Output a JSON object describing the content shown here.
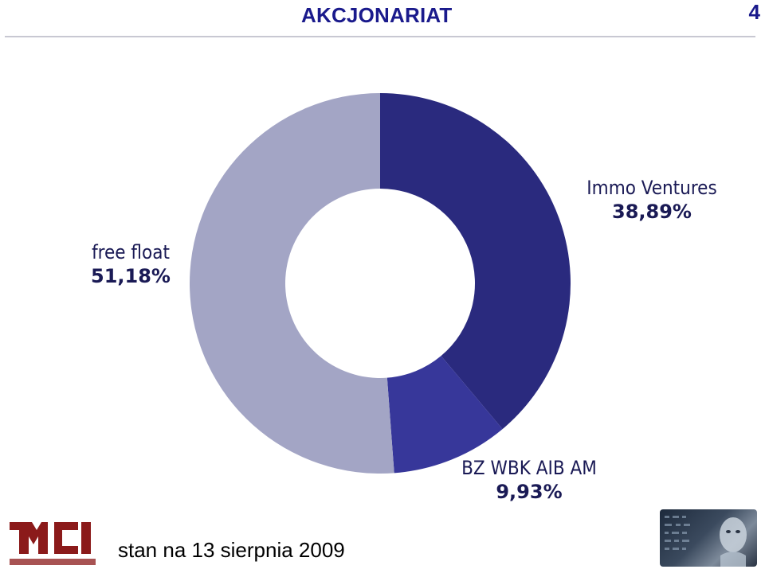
{
  "header": {
    "title": "AKCJONARIAT",
    "page_number": "4"
  },
  "footer": {
    "date_note": "stan na 13 sierpnia 2009"
  },
  "logo": {
    "icon": "mci-management-logo"
  },
  "corner_image": {
    "icon": "robot-face-image"
  },
  "colors": {
    "title": "#1a1a8c",
    "immo": "#2a2a7e",
    "bz": "#37379a",
    "free": "#a3a5c5"
  },
  "chart_data": {
    "type": "pie",
    "donut": true,
    "start_angle_deg": 0,
    "direction": "clockwise",
    "slices": [
      {
        "name": "Immo Ventures",
        "value": 38.89,
        "label_value": "38,89%",
        "color": "#2a2a7e"
      },
      {
        "name": "BZ WBK AIB AM",
        "value": 9.93,
        "label_value": "9,93%",
        "color": "#37379a"
      },
      {
        "name": "free float",
        "value": 51.18,
        "label_value": "51,18%",
        "color": "#a3a5c5"
      }
    ]
  }
}
